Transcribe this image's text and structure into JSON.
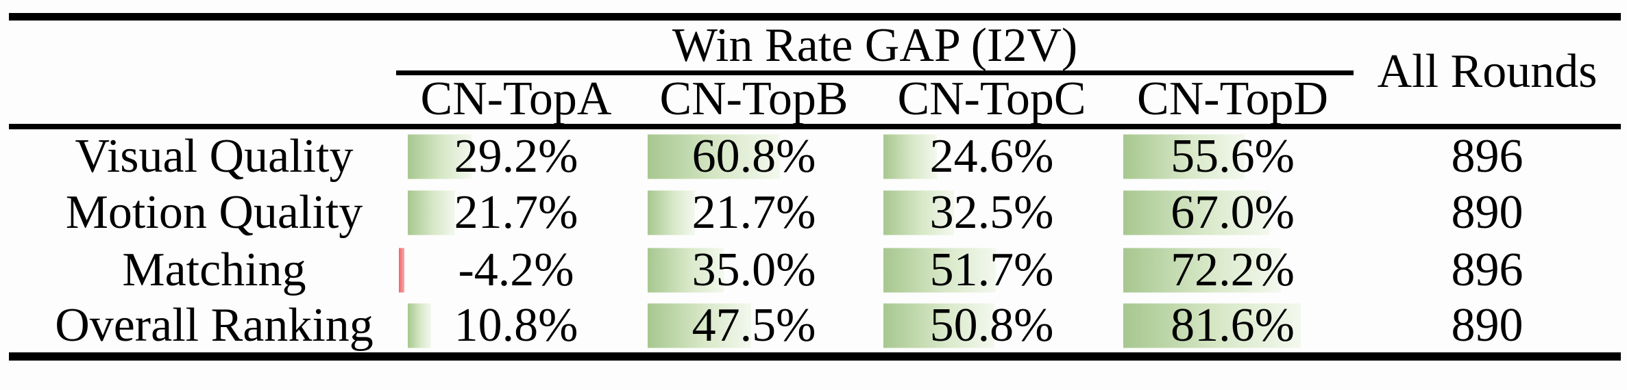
{
  "table": {
    "group_header": "Win Rate GAP (I2V)",
    "all_rounds_header": "All Rounds",
    "columns": [
      "CN-TopA",
      "CN-TopB",
      "CN-TopC",
      "CN-TopD"
    ],
    "rows": [
      {
        "label": "Visual Quality",
        "values": [
          29.2,
          60.8,
          24.6,
          55.6
        ],
        "display": [
          "29.2%",
          "60.8%",
          "24.6%",
          "55.6%"
        ],
        "all_rounds": "896"
      },
      {
        "label": "Motion Quality",
        "values": [
          21.7,
          21.7,
          32.5,
          67.0
        ],
        "display": [
          "21.7%",
          "21.7%",
          "32.5%",
          "67.0%"
        ],
        "all_rounds": "890"
      },
      {
        "label": "Matching",
        "values": [
          -4.2,
          35.0,
          51.7,
          72.2
        ],
        "display": [
          "-4.2%",
          "35.0%",
          "51.7%",
          "72.2%"
        ],
        "all_rounds": "896"
      },
      {
        "label": "Overall Ranking",
        "values": [
          10.8,
          47.5,
          50.8,
          81.6
        ],
        "display": [
          "10.8%",
          "47.5%",
          "50.8%",
          "81.6%"
        ],
        "all_rounds": "890"
      }
    ]
  },
  "colors": {
    "rule_black": "#000000",
    "bar_green_left": "#a7c78f",
    "bar_green_mid": "#d8e8c8",
    "bar_green_right": "#f3f8ee",
    "bar_red_left": "#ee6565",
    "bar_red_right": "#f7a8a8"
  },
  "chart_data": {
    "type": "table",
    "title": "Win Rate GAP (I2V)",
    "row_labels": [
      "Visual Quality",
      "Motion Quality",
      "Matching",
      "Overall Ranking"
    ],
    "columns": [
      "CN-TopA",
      "CN-TopB",
      "CN-TopC",
      "CN-TopD",
      "All Rounds"
    ],
    "win_rate_gap_percent": {
      "CN-TopA": [
        29.2,
        21.7,
        -4.2,
        10.8
      ],
      "CN-TopB": [
        60.8,
        21.7,
        35.0,
        47.5
      ],
      "CN-TopC": [
        24.6,
        32.5,
        51.7,
        50.8
      ],
      "CN-TopD": [
        55.6,
        67.0,
        72.2,
        81.6
      ]
    },
    "all_rounds": [
      896,
      890,
      896,
      890
    ],
    "notes": "Green gradient data bars proportional to positive win-rate gap; small red bar for the single negative value (-4.2%)."
  }
}
